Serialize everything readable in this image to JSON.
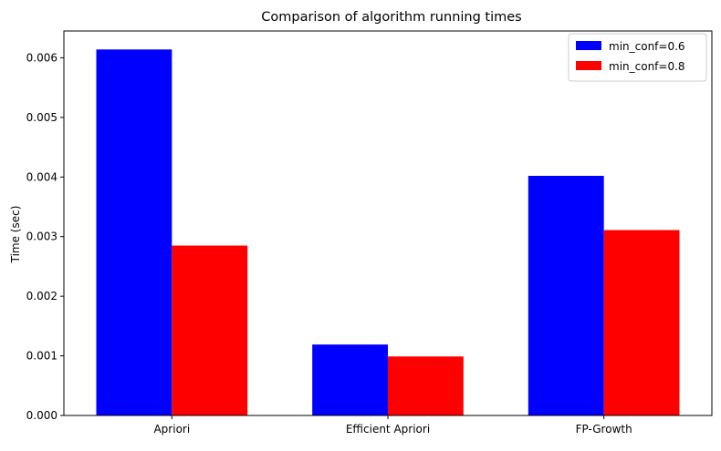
{
  "chart_data": {
    "type": "bar",
    "title": "Comparison of algorithm running times",
    "xlabel": "",
    "ylabel": "Time (sec)",
    "categories": [
      "Apriori",
      "Efficient Apriori",
      "FP-Growth"
    ],
    "series": [
      {
        "name": "min_conf=0.6",
        "color": "#0000ff",
        "values": [
          0.00614,
          0.00119,
          0.00402
        ]
      },
      {
        "name": "min_conf=0.8",
        "color": "#ff0000",
        "values": [
          0.00285,
          0.00099,
          0.00311
        ]
      }
    ],
    "ylim": [
      0,
      0.00645
    ],
    "yticks": [
      "0.000",
      "0.001",
      "0.002",
      "0.003",
      "0.004",
      "0.005",
      "0.006"
    ],
    "ytick_values": [
      0,
      0.001,
      0.002,
      0.003,
      0.004,
      0.005,
      0.006
    ],
    "grid": false,
    "legend_position": "top-right"
  }
}
